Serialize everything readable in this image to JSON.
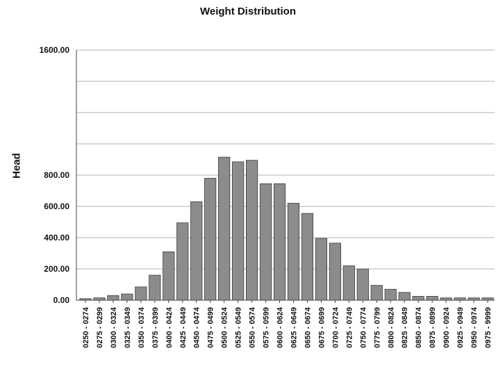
{
  "chart_data": {
    "type": "bar",
    "title": "Weight Distribution",
    "xlabel": "",
    "ylabel": "Head",
    "ylim": [
      0,
      1600
    ],
    "yticks": [
      "0.00",
      "200.00",
      "400.00",
      "600.00",
      "800.00",
      "1600.00"
    ],
    "grid": true,
    "legend": "none",
    "categories": [
      "0250 - 0274",
      "0275 - 0299",
      "0300 - 0324",
      "0325 - 0349",
      "0350 - 0374",
      "0375 - 0399",
      "0400 - 0424",
      "0425 - 0449",
      "0450 - 0474",
      "0475 - 0499",
      "0500 - 0524",
      "0525 - 0549",
      "0550 - 0574",
      "0575 - 0599",
      "0600 - 0624",
      "0625 - 0649",
      "0650 - 0674",
      "0675 - 0699",
      "0700 - 0724",
      "0725 - 0749",
      "0750 - 0774",
      "0775 - 0799",
      "0800 - 0824",
      "0825 - 0849",
      "0850 - 0874",
      "0875 - 0899",
      "0900 - 0924",
      "0925 - 0949",
      "0950 - 0974",
      "0975 - 9999"
    ],
    "values": [
      10,
      15,
      30,
      40,
      85,
      160,
      310,
      495,
      630,
      780,
      915,
      885,
      895,
      745,
      745,
      620,
      555,
      395,
      365,
      220,
      200,
      95,
      70,
      50,
      25,
      25,
      15,
      15,
      15,
      15
    ],
    "bar_color": "#8c8c8c"
  }
}
